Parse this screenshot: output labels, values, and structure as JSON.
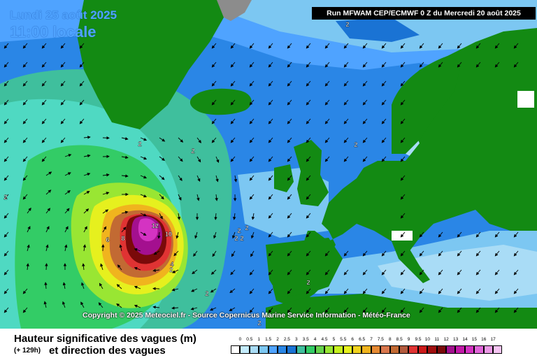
{
  "header": {
    "date": "Lundi 25 août 2025",
    "time": "11:00 locale",
    "run": "Run MFWAM CEP/ECMWF 0 Z du Mercredi 20 août 2025"
  },
  "map": {
    "copyright": "Copyright © 2025 Meteociel.fr - Source Copernicus Marine Service Information - Météo-France",
    "contour_labels": [
      {
        "text": "2"
      },
      {
        "text": "2"
      },
      {
        "text": "2"
      },
      {
        "text": "2"
      },
      {
        "text": "2"
      },
      {
        "text": "2"
      },
      {
        "text": "2"
      },
      {
        "text": "2"
      },
      {
        "text": "2"
      },
      {
        "text": "2"
      },
      {
        "text": "2"
      },
      {
        "text": "2"
      },
      {
        "text": "2"
      },
      {
        "text": "6"
      },
      {
        "text": "8"
      },
      {
        "text": "12"
      },
      {
        "text": "10"
      },
      {
        "text": "4"
      }
    ],
    "colors": {
      "land": "#138a13",
      "sea_ice_grey": "#8c8c8c",
      "low_waves": "#a9dcf6",
      "mid_waves": "#1a73d4",
      "storm_core": "#a4108f"
    }
  },
  "legend": {
    "title": "Hauteur significative des vagues (m)",
    "hours": "(+ 129h)",
    "subtitle": "et direction des vagues",
    "scale_labels": [
      "0",
      "0.5",
      "1",
      "1.5",
      "2",
      "2.5",
      "3",
      "3.5",
      "4",
      "4.5",
      "5",
      "5.5",
      "6",
      "6.5",
      "7",
      "7.5",
      "8",
      "8.5",
      "9",
      "9.5",
      "10",
      "11",
      "12",
      "13",
      "14",
      "15",
      "16",
      "17"
    ],
    "scale_colors": [
      "#ffffff",
      "#c4ecfd",
      "#a9dcf6",
      "#7cc7f2",
      "#4fa3ff",
      "#2a86e6",
      "#1a73d4",
      "#3fbf9d",
      "#33cc66",
      "#66d24d",
      "#99e633",
      "#c6f01e",
      "#e6f01e",
      "#f0d21e",
      "#f0b41e",
      "#e68a33",
      "#d9774d",
      "#c26a33",
      "#b35a3d",
      "#e03333",
      "#cc1a1a",
      "#a00f0f",
      "#7a0a0a",
      "#a4108f",
      "#c21aa8",
      "#d433c2",
      "#e066d9",
      "#eb99e6",
      "#f5c4f2"
    ]
  }
}
